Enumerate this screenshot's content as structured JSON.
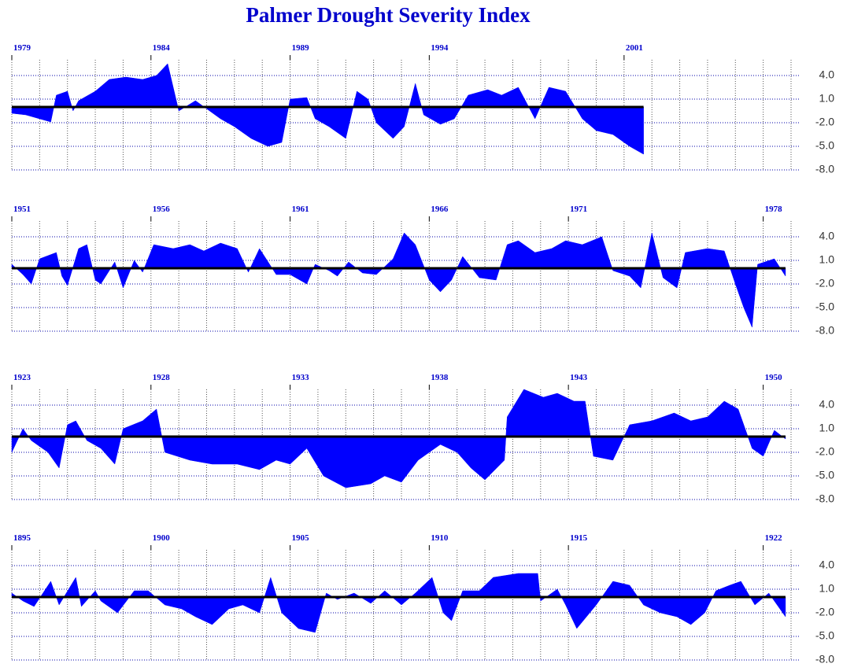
{
  "chart_data": [
    {
      "type": "area",
      "title": "Palmer Drought Severity Index",
      "color": "#0000ff",
      "grid": true,
      "xlim": [
        1979,
        2007
      ],
      "xticks": [
        1979,
        1984,
        1989,
        1994,
        2001
      ],
      "ylim": [
        -8,
        6
      ],
      "yticks": [
        {
          "value": 4,
          "label": "4.0"
        },
        {
          "value": 1,
          "label": "1.0"
        },
        {
          "value": -2,
          "label": "-2.0"
        },
        {
          "value": -5,
          "label": "-5.0"
        },
        {
          "value": -8,
          "label": "-8.0"
        }
      ],
      "x": [
        1979.0,
        1979.5,
        1980.0,
        1980.4,
        1980.6,
        1981.0,
        1981.2,
        1981.4,
        1982.0,
        1982.5,
        1983.1,
        1983.7,
        1984.2,
        1984.6,
        1985.0,
        1985.6,
        1986.5,
        1987.0,
        1987.6,
        1988.2,
        1988.7,
        1989.0,
        1989.6,
        1989.9,
        1990.4,
        1991.0,
        1991.4,
        1991.8,
        1992.1,
        1992.7,
        1993.1,
        1993.5,
        1993.8,
        1994.4,
        1994.9,
        1995.4,
        1996.1,
        1996.6,
        1997.2,
        1997.8,
        1998.3,
        1998.9,
        1999.5,
        2000.0,
        2000.6,
        2001.2,
        2001.7
      ],
      "values": [
        -0.8,
        -1.0,
        -1.5,
        -1.9,
        1.5,
        2.0,
        -0.5,
        0.8,
        2.0,
        3.5,
        3.8,
        3.5,
        4.0,
        5.5,
        -0.5,
        0.8,
        -1.5,
        -2.5,
        -4.0,
        -5.0,
        -4.5,
        1.0,
        1.2,
        -1.5,
        -2.5,
        -4.0,
        2.0,
        1.0,
        -2.0,
        -4.0,
        -2.5,
        3.0,
        -1.0,
        -2.2,
        -1.5,
        1.5,
        2.2,
        1.5,
        2.5,
        -1.5,
        2.5,
        2.0,
        -1.5,
        -3.0,
        -3.5,
        -5.0,
        -6.0
      ]
    },
    {
      "type": "area",
      "color": "#0000ff",
      "grid": true,
      "xlim": [
        1951,
        1979
      ],
      "xticks": [
        1951,
        1956,
        1961,
        1966,
        1971,
        1978
      ],
      "ylim": [
        -8,
        6
      ],
      "yticks": [
        {
          "value": 4,
          "label": "4.0"
        },
        {
          "value": 1,
          "label": "1.0"
        },
        {
          "value": -2,
          "label": "-2.0"
        },
        {
          "value": -5,
          "label": "-5.0"
        },
        {
          "value": -8,
          "label": "-8.0"
        }
      ],
      "x": [
        1951.0,
        1951.4,
        1951.7,
        1952.0,
        1952.6,
        1952.8,
        1953.0,
        1953.4,
        1953.7,
        1954.0,
        1954.2,
        1954.7,
        1955.0,
        1955.4,
        1955.7,
        1956.1,
        1956.8,
        1957.4,
        1957.9,
        1958.5,
        1959.1,
        1959.5,
        1959.9,
        1960.5,
        1961.0,
        1961.6,
        1961.9,
        1962.4,
        1962.7,
        1963.1,
        1963.6,
        1964.1,
        1964.7,
        1965.1,
        1965.5,
        1966.0,
        1966.4,
        1966.8,
        1967.2,
        1967.8,
        1968.4,
        1968.8,
        1969.2,
        1969.8,
        1970.4,
        1970.9,
        1971.5,
        1972.2,
        1972.6,
        1973.2,
        1973.6,
        1974.0,
        1974.4,
        1974.9,
        1975.2,
        1976.0,
        1976.6,
        1977.0,
        1977.3,
        1977.6,
        1977.8,
        1978.4,
        1978.8
      ],
      "values": [
        0.5,
        -0.8,
        -2.0,
        1.2,
        2.0,
        -1.0,
        -2.2,
        2.5,
        3.0,
        -1.5,
        -2.0,
        0.8,
        -2.5,
        1.0,
        -0.5,
        3.0,
        2.5,
        3.0,
        2.2,
        3.2,
        2.5,
        -0.5,
        2.5,
        -0.8,
        -0.8,
        -2.0,
        0.5,
        -0.3,
        -1.0,
        0.8,
        -0.6,
        -0.8,
        1.2,
        4.5,
        3.0,
        -1.5,
        -3.0,
        -1.5,
        1.5,
        -1.2,
        -1.5,
        3.0,
        3.5,
        2.0,
        2.5,
        3.5,
        3.0,
        4.0,
        -0.3,
        -1.0,
        -2.5,
        4.5,
        -1.2,
        -2.5,
        2.0,
        2.5,
        2.2,
        -2.0,
        -5.0,
        -7.5,
        0.5,
        1.2,
        -1.0
      ]
    },
    {
      "type": "area",
      "color": "#0000ff",
      "grid": true,
      "xlim": [
        1923,
        1951
      ],
      "xticks": [
        1923,
        1928,
        1933,
        1938,
        1943,
        1950
      ],
      "ylim": [
        -8,
        6
      ],
      "yticks": [
        {
          "value": 4,
          "label": "4.0"
        },
        {
          "value": 1,
          "label": "1.0"
        },
        {
          "value": -2,
          "label": "-2.0"
        },
        {
          "value": -5,
          "label": "-5.0"
        },
        {
          "value": -8,
          "label": "-8.0"
        }
      ],
      "x": [
        1923.0,
        1923.4,
        1923.7,
        1924.3,
        1924.7,
        1925.0,
        1925.3,
        1925.7,
        1926.2,
        1926.7,
        1927.0,
        1927.7,
        1928.2,
        1928.5,
        1929.4,
        1930.2,
        1931.1,
        1931.9,
        1932.5,
        1933.0,
        1933.6,
        1934.2,
        1935.0,
        1935.9,
        1936.4,
        1937.0,
        1937.6,
        1938.4,
        1939.0,
        1939.5,
        1940.0,
        1940.7,
        1940.8,
        1941.4,
        1942.1,
        1942.6,
        1943.2,
        1943.6,
        1943.9,
        1944.6,
        1945.2,
        1946.0,
        1946.8,
        1947.4,
        1948.0,
        1948.6,
        1949.1,
        1949.6,
        1950.0,
        1950.4,
        1950.8
      ],
      "values": [
        -2.0,
        1.0,
        -0.5,
        -2.0,
        -4.0,
        1.5,
        2.0,
        -0.5,
        -1.5,
        -3.5,
        1.0,
        2.0,
        3.5,
        -2.0,
        -3.0,
        -3.5,
        -3.5,
        -4.2,
        -3.0,
        -3.5,
        -1.5,
        -5.0,
        -6.5,
        -6.0,
        -5.0,
        -5.8,
        -3.0,
        -1.0,
        -2.0,
        -4.0,
        -5.5,
        -3.0,
        2.5,
        6.0,
        5.0,
        5.5,
        4.5,
        4.5,
        -2.5,
        -3.0,
        1.5,
        2.0,
        3.0,
        2.0,
        2.5,
        4.5,
        3.5,
        -1.5,
        -2.5,
        0.8,
        -0.3
      ]
    },
    {
      "type": "area",
      "color": "#0000ff",
      "grid": true,
      "xlim": [
        1895,
        1923
      ],
      "xticks": [
        1895,
        1900,
        1905,
        1910,
        1915,
        1922
      ],
      "ylim": [
        -8,
        6
      ],
      "yticks": [
        {
          "value": 4,
          "label": "4.0"
        },
        {
          "value": 1,
          "label": "1.0"
        },
        {
          "value": -2,
          "label": "-2.0"
        },
        {
          "value": -5,
          "label": "-5.0"
        },
        {
          "value": -8,
          "label": "-8.0"
        }
      ],
      "x": [
        1895.0,
        1895.4,
        1895.8,
        1896.4,
        1896.7,
        1897.3,
        1897.5,
        1898.0,
        1898.2,
        1898.8,
        1899.4,
        1899.9,
        1900.5,
        1901.1,
        1901.6,
        1902.2,
        1902.8,
        1903.3,
        1903.9,
        1904.3,
        1904.7,
        1905.3,
        1905.9,
        1906.3,
        1906.7,
        1907.3,
        1907.9,
        1908.4,
        1909.0,
        1909.5,
        1910.1,
        1910.5,
        1910.8,
        1911.2,
        1911.8,
        1912.3,
        1913.2,
        1913.9,
        1914.0,
        1914.6,
        1914.9,
        1915.3,
        1916.0,
        1916.6,
        1917.2,
        1917.7,
        1918.3,
        1918.9,
        1919.4,
        1919.9,
        1920.3,
        1920.8,
        1921.2,
        1921.7,
        1922.2,
        1922.8
      ],
      "values": [
        0.5,
        -0.5,
        -1.2,
        2.0,
        -1.0,
        2.5,
        -1.2,
        0.8,
        -0.5,
        -2.0,
        0.8,
        0.8,
        -1.0,
        -1.5,
        -2.5,
        -3.5,
        -1.5,
        -1.0,
        -2.0,
        2.5,
        -2.0,
        -4.0,
        -4.5,
        0.5,
        -0.3,
        0.5,
        -0.8,
        0.8,
        -1.0,
        0.5,
        2.5,
        -2.0,
        -3.0,
        0.8,
        0.8,
        2.5,
        3.0,
        3.0,
        -0.5,
        1.0,
        -1.0,
        -4.0,
        -1.0,
        2.0,
        1.5,
        -1.0,
        -2.0,
        -2.5,
        -3.5,
        -2.0,
        0.8,
        1.5,
        2.0,
        -1.0,
        0.5,
        -2.5
      ]
    }
  ]
}
